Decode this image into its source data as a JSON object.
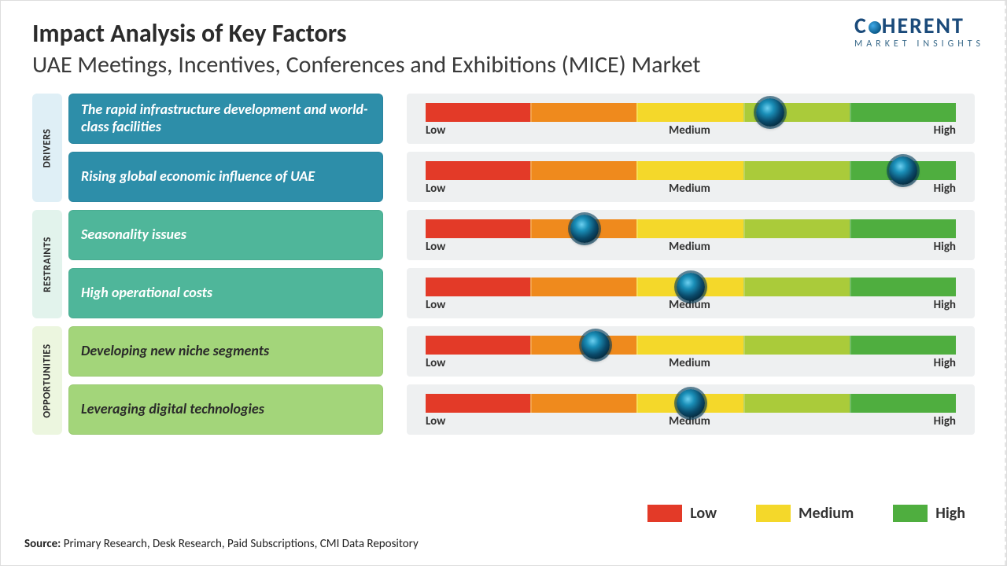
{
  "header": {
    "title": "Impact Analysis of Key Factors",
    "subtitle": "UAE Meetings, Incentives, Conferences and Exhibitions (MICE) Market"
  },
  "logo": {
    "brand_pre": "C",
    "brand_post": "HERENT",
    "tagline": "MARKET INSIGHTS"
  },
  "scale": {
    "low": "Low",
    "medium": "Medium",
    "high": "High",
    "segment_colors": [
      "#e33a28",
      "#ef8a1d",
      "#f4d82a",
      "#aacb3a",
      "#4fae3f"
    ]
  },
  "categories": [
    {
      "name": "DRIVERS",
      "tab_bg": "#dfeff6",
      "factor_bg": "#2d8ea9",
      "factor_text_color": "#ffffff",
      "factors": [
        {
          "text": "The rapid infrastructure development and world-class facilities",
          "marker_pct": 65
        },
        {
          "text": "Rising global economic influence of UAE",
          "marker_pct": 90
        }
      ]
    },
    {
      "name": "RESTRAINTS",
      "tab_bg": "#e2f3ec",
      "factor_bg": "#4fb69a",
      "factor_text_color": "#ffffff",
      "factors": [
        {
          "text": "Seasonality issues",
          "marker_pct": 30
        },
        {
          "text": "High operational costs",
          "marker_pct": 50
        }
      ]
    },
    {
      "name": "OPPORTUNITIES",
      "tab_bg": "#ecf6df",
      "factor_bg": "#a3d57a",
      "factor_text_color": "#2a2a2a",
      "factors": [
        {
          "text": "Developing new niche segments",
          "marker_pct": 32
        },
        {
          "text": "Leveraging digital technologies",
          "marker_pct": 50
        }
      ]
    }
  ],
  "legend": {
    "items": [
      {
        "label": "Low",
        "color": "#e33a28"
      },
      {
        "label": "Medium",
        "color": "#f4d82a"
      },
      {
        "label": "High",
        "color": "#4fae3f"
      }
    ]
  },
  "source": {
    "label": "Source:",
    "text": "Primary Research, Desk Research, Paid Subscriptions, CMI Data Repository"
  }
}
